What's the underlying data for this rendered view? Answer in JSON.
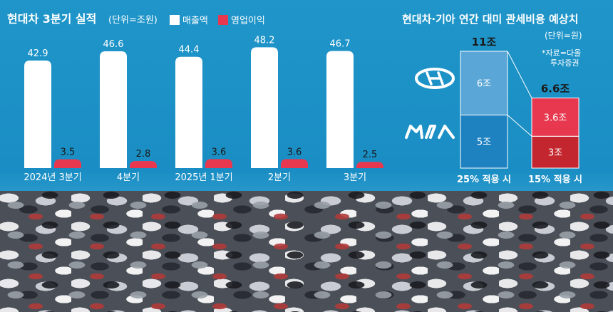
{
  "left_chart": {
    "title": "현대차 3분기 실적",
    "unit": "(단위=조원)",
    "legend": [
      {
        "label": "매출액",
        "color": "#ffffff"
      },
      {
        "label": "영업이익",
        "color": "#e8384f"
      }
    ]
  },
  "right_chart": {
    "title": "현대차·기아 연간 대미 관세비용 예상치",
    "unit": "(단위=원)",
    "source": [
      "*자료=다올",
      "투자증권"
    ],
    "brands": [
      "hyundai-logo-icon",
      "kia-logo-icon"
    ]
  },
  "chart_data": [
    {
      "type": "bar",
      "title": "현대차 3분기 실적",
      "categories": [
        "2024년 3분기",
        "4분기",
        "2025년 1분기",
        "2분기",
        "3분기"
      ],
      "series": [
        {
          "name": "매출액",
          "values": [
            42.9,
            46.6,
            44.4,
            48.2,
            46.7
          ],
          "labels": [
            "42.9",
            "46.6",
            "44.4",
            "48.2",
            "46.7"
          ],
          "color": "#ffffff"
        },
        {
          "name": "영업이익",
          "values": [
            3.5,
            2.8,
            3.6,
            3.6,
            2.5
          ],
          "labels": [
            "3.5",
            "2.8",
            "3.6",
            "3.6",
            "2.5"
          ],
          "color": "#e8384f"
        }
      ],
      "ylim": [
        0,
        50
      ]
    },
    {
      "type": "bar",
      "stacked": true,
      "title": "현대차·기아 연간 대미 관세비용 예상치",
      "categories": [
        "25% 적용 시",
        "15% 적용 시"
      ],
      "totals": [
        "11조",
        "6.6조"
      ],
      "series": [
        {
          "name": "현대차",
          "values": [
            6,
            3.6
          ],
          "labels": [
            "6조",
            "3.6조"
          ],
          "colors": [
            "#5aa6d6",
            "#e8384f"
          ]
        },
        {
          "name": "기아",
          "values": [
            5,
            3
          ],
          "labels": [
            "5조",
            "3조"
          ],
          "colors": [
            "#1f82c0",
            "#c4262f"
          ]
        }
      ]
    }
  ]
}
